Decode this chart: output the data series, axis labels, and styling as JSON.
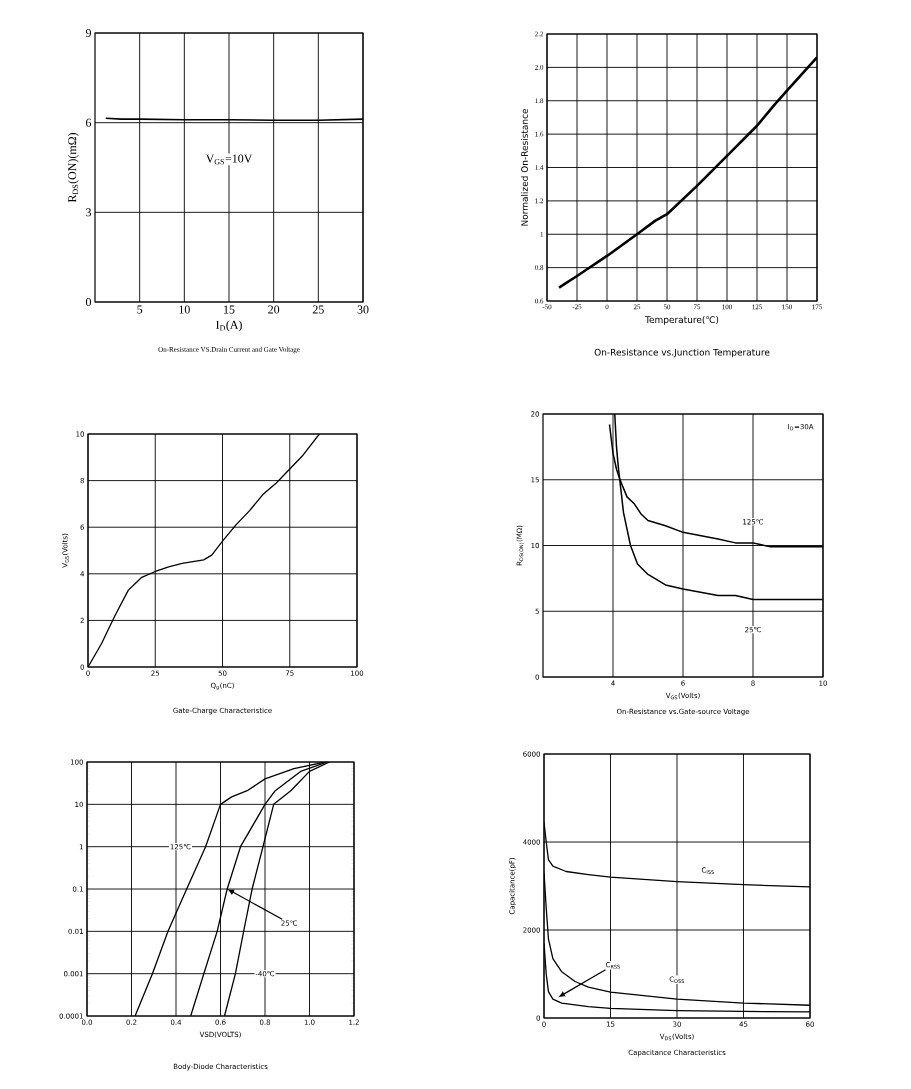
{
  "chart_data": [
    {
      "type": "line",
      "title": "On-Resistance VS.Drain Current and Gate Voltage",
      "xlabel": "I$_{D}$(A)",
      "ylabel": "R$_{DS}$(ON)(mΩ)",
      "xlim": [
        0,
        30
      ],
      "ylim": [
        0,
        9
      ],
      "xticks": [
        5,
        10,
        15,
        20,
        25,
        30
      ],
      "yticks": [
        0,
        3,
        6,
        9
      ],
      "grid": true,
      "series": [
        {
          "color": "#000000",
          "x": [
            1.2,
            3,
            5,
            10,
            15,
            20,
            25,
            30
          ],
          "values": [
            6.15,
            6.12,
            6.12,
            6.1,
            6.1,
            6.08,
            6.08,
            6.12
          ]
        }
      ],
      "annotations": [
        "V$_{GS}$=10V"
      ]
    },
    {
      "type": "line",
      "title": "On-Resistance vs.Junction Temperature",
      "xlabel": "Temperature(℃)",
      "ylabel": "Normalized On-Resistance",
      "xlim": [
        -50,
        175
      ],
      "ylim": [
        0.6,
        2.2
      ],
      "xticks": [
        -50,
        -25,
        0,
        25,
        50,
        75,
        100,
        125,
        150,
        175
      ],
      "yticks": [
        0.6,
        0.8,
        1,
        1.2,
        1.4,
        1.6,
        1.8,
        {
          "value": 2,
          "label": "2.0"
        },
        2.2
      ],
      "grid": true,
      "series": [
        {
          "color": "#000000",
          "x": [
            -40,
            -25,
            0,
            25,
            40,
            50,
            75,
            100,
            125,
            140,
            150,
            175
          ],
          "values": [
            0.68,
            0.75,
            0.87,
            1.0,
            1.08,
            1.12,
            1.29,
            1.47,
            1.65,
            1.78,
            1.86,
            2.06
          ]
        }
      ]
    },
    {
      "type": "line",
      "title": "Gate-Charge Characteristice",
      "xlabel": "Q$_{g}$(nC)",
      "ylabel": "V$_{GS}$(Volts)",
      "xlim": [
        0,
        100
      ],
      "ylim": [
        0,
        10
      ],
      "xticks": [
        0,
        25,
        50,
        75,
        100
      ],
      "yticks": [
        0,
        2,
        4,
        6,
        8,
        10
      ],
      "grid": true,
      "series": [
        {
          "color": "#000000",
          "x": [
            0,
            5,
            10,
            15,
            20,
            25,
            30,
            35,
            43,
            46,
            50,
            55,
            60,
            65,
            70,
            75,
            80,
            86
          ],
          "values": [
            0,
            1.0,
            2.2,
            3.3,
            3.85,
            4.1,
            4.3,
            4.45,
            4.6,
            4.8,
            5.4,
            6.1,
            6.7,
            7.4,
            7.9,
            8.5,
            9.1,
            10
          ]
        }
      ]
    },
    {
      "type": "line",
      "title": "On-Resistance vs.Gate-source Voltage",
      "xlabel": "V$_{GS}$(Volts)",
      "ylabel": "R$_{DS(ON)}$(MΩ)",
      "xlim": [
        2,
        10
      ],
      "ylim": [
        0,
        20
      ],
      "xticks": [
        4,
        6,
        8,
        10
      ],
      "yticks": [
        0,
        5,
        10,
        15,
        20
      ],
      "grid": true,
      "series": [
        {
          "color": "#000000",
          "x": [
            3.9,
            4.0,
            4.1,
            4.2,
            4.4,
            4.6,
            4.8,
            5,
            5.5,
            6,
            7,
            7.5,
            8,
            8.5,
            10
          ],
          "values": [
            19.2,
            17.0,
            15.8,
            15.0,
            13.7,
            13.2,
            12.4,
            11.9,
            11.5,
            11.0,
            10.5,
            10.2,
            10.2,
            9.9,
            9.9
          ]
        },
        {
          "color": "#000000",
          "x": [
            4.05,
            4.1,
            4.15,
            4.3,
            4.5,
            4.7,
            5,
            5.5,
            6,
            7,
            7.5,
            8,
            10
          ],
          "values": [
            20,
            17.5,
            16,
            12.5,
            10,
            8.6,
            7.8,
            7.0,
            6.7,
            6.2,
            6.2,
            5.9,
            5.9
          ]
        }
      ],
      "annotations": [
        "I$_{D}$=30A",
        {
          "text": "125℃",
          "x": 8,
          "y": 11.8
        },
        {
          "text": "25℃",
          "x": 8,
          "y": 3.6
        }
      ]
    },
    {
      "type": "line",
      "title": "Body-Diode Characteristics",
      "xlabel": "VSD(VOLTS)",
      "log": "y",
      "xlim": [
        0,
        1.2
      ],
      "ylim": [
        0.0001,
        100
      ],
      "xticks": [
        {
          "value": 0,
          "label": "0.0"
        },
        0.2,
        0.4,
        0.6,
        0.8,
        {
          "value": 1,
          "label": "1.0"
        },
        1.2
      ],
      "yticks": [
        0.0001,
        0.001,
        0.01,
        0.1,
        1,
        10,
        100
      ],
      "grid": true,
      "series": [
        {
          "color": "#000000",
          "x": [
            0.216,
            0.294,
            0.364,
            0.448,
            0.533,
            0.6,
            0.65,
            0.72,
            0.8,
            0.93,
            1.07
          ],
          "values": [
            0.0001,
            0.001,
            0.01,
            0.1,
            1,
            10,
            15,
            21,
            40,
            70,
            100
          ]
        },
        {
          "color": "#000000",
          "x": [
            0.466,
            0.525,
            0.585,
            0.63,
            0.69,
            0.8,
            0.846,
            0.96,
            1.08
          ],
          "values": [
            0.0001,
            0.001,
            0.01,
            0.1,
            1,
            10,
            21,
            60,
            100
          ]
        },
        {
          "color": "#000000",
          "x": [
            0.618,
            0.667,
            0.704,
            0.742,
            0.791,
            0.839,
            0.916,
            1.0,
            1.09
          ],
          "values": [
            0.0001,
            0.001,
            0.01,
            0.1,
            1,
            10,
            21,
            60,
            100
          ]
        }
      ],
      "annotations": [
        {
          "text": "125℃",
          "x": 0.42,
          "y": 1
        },
        {
          "text": "25℃",
          "x": 0.63,
          "y": 0.1
        },
        {
          "text": "-40℃",
          "x": 0.8,
          "y": 0.001
        }
      ]
    },
    {
      "type": "line",
      "title": "Capacitance Characteristics",
      "xlabel": "V$_{DS}$(Volts)",
      "ylabel": "Capacitance(pF)",
      "xlim": [
        0,
        60
      ],
      "ylim": [
        0,
        6000
      ],
      "xticks": [
        0,
        15,
        30,
        45,
        60
      ],
      "yticks": [
        0,
        2000,
        4000,
        6000
      ],
      "grid": true,
      "series": [
        {
          "color": "#000000",
          "x": [
            0,
            0.5,
            1,
            2,
            5,
            10,
            15,
            30,
            45,
            60
          ],
          "values": [
            4450,
            4000,
            3600,
            3450,
            3330,
            3260,
            3200,
            3100,
            3030,
            2980
          ]
        },
        {
          "color": "#000000",
          "x": [
            0,
            0.5,
            1,
            2,
            4,
            7,
            10,
            15,
            30,
            45,
            60
          ],
          "values": [
            3300,
            2500,
            1800,
            1350,
            1050,
            830,
            700,
            590,
            430,
            340,
            290
          ]
        },
        {
          "color": "#000000",
          "x": [
            0,
            0.5,
            1,
            2,
            4,
            10,
            15,
            30,
            45,
            60
          ],
          "values": [
            1700,
            1000,
            600,
            430,
            340,
            260,
            220,
            170,
            150,
            140
          ]
        }
      ],
      "annotations": [
        {
          "text": "C$_{ISS}$",
          "x": 37,
          "y": 3350
        },
        {
          "text": "C$_{OSS}$",
          "x": 30,
          "y": 870
        },
        {
          "text": "C$_{RSS}$",
          "x": 3.2,
          "y": 470
        }
      ]
    }
  ]
}
